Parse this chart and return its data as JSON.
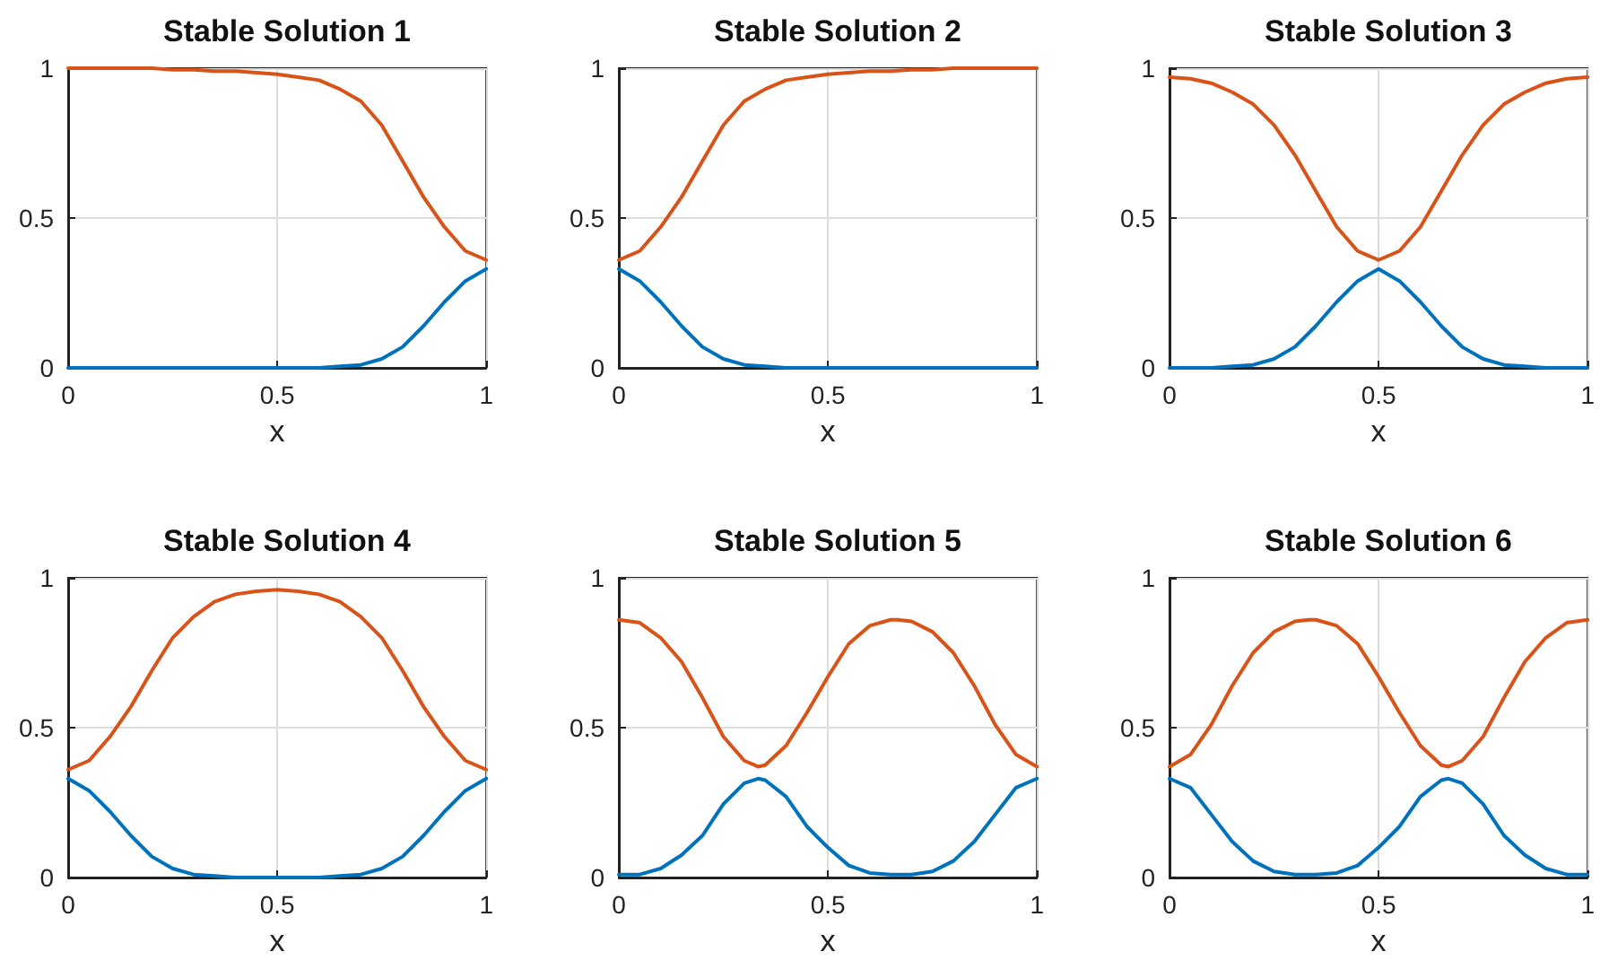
{
  "chart_data": [
    {
      "type": "line",
      "title": "Stable Solution 1",
      "xlabel": "x",
      "x": [
        0,
        0.05,
        0.1,
        0.15,
        0.2,
        0.25,
        0.3,
        0.35,
        0.4,
        0.45,
        0.5,
        0.55,
        0.6,
        0.65,
        0.7,
        0.75,
        0.8,
        0.85,
        0.9,
        0.95,
        1
      ],
      "xlim": [
        0,
        1
      ],
      "xticks": [
        0,
        0.5,
        1
      ],
      "ylim": [
        0,
        1
      ],
      "yticks": [
        0,
        0.5,
        1
      ],
      "grid": true,
      "series": [
        {
          "color": "#0072bd",
          "values": [
            0,
            0,
            0,
            0,
            0,
            0,
            0,
            0,
            0,
            0,
            0,
            0,
            0,
            0.005,
            0.01,
            0.03,
            0.07,
            0.14,
            0.22,
            0.29,
            0.33
          ]
        },
        {
          "color": "#d95319",
          "values": [
            1,
            1,
            1,
            1,
            1,
            0.995,
            0.995,
            0.99,
            0.99,
            0.985,
            0.98,
            0.97,
            0.96,
            0.93,
            0.89,
            0.81,
            0.69,
            0.57,
            0.47,
            0.39,
            0.36
          ]
        }
      ]
    },
    {
      "type": "line",
      "title": "Stable Solution 2",
      "xlabel": "x",
      "x": [
        0,
        0.05,
        0.1,
        0.15,
        0.2,
        0.25,
        0.3,
        0.35,
        0.4,
        0.45,
        0.5,
        0.55,
        0.6,
        0.65,
        0.7,
        0.75,
        0.8,
        0.85,
        0.9,
        0.95,
        1
      ],
      "xlim": [
        0,
        1
      ],
      "xticks": [
        0,
        0.5,
        1
      ],
      "ylim": [
        0,
        1
      ],
      "yticks": [
        0,
        0.5,
        1
      ],
      "grid": true,
      "series": [
        {
          "color": "#0072bd",
          "values": [
            0.33,
            0.29,
            0.22,
            0.14,
            0.07,
            0.03,
            0.01,
            0.005,
            0,
            0,
            0,
            0,
            0,
            0,
            0,
            0,
            0,
            0,
            0,
            0,
            0
          ]
        },
        {
          "color": "#d95319",
          "values": [
            0.36,
            0.39,
            0.47,
            0.57,
            0.69,
            0.81,
            0.89,
            0.93,
            0.96,
            0.97,
            0.98,
            0.985,
            0.99,
            0.99,
            0.995,
            0.995,
            1,
            1,
            1,
            1,
            1
          ]
        }
      ]
    },
    {
      "type": "line",
      "title": "Stable Solution 3",
      "xlabel": "x",
      "x": [
        0,
        0.05,
        0.1,
        0.15,
        0.2,
        0.25,
        0.3,
        0.35,
        0.4,
        0.45,
        0.5,
        0.55,
        0.6,
        0.65,
        0.7,
        0.75,
        0.8,
        0.85,
        0.9,
        0.95,
        1
      ],
      "xlim": [
        0,
        1
      ],
      "xticks": [
        0,
        0.5,
        1
      ],
      "ylim": [
        0,
        1
      ],
      "yticks": [
        0,
        0.5,
        1
      ],
      "grid": true,
      "series": [
        {
          "color": "#0072bd",
          "values": [
            0,
            0,
            0,
            0.005,
            0.01,
            0.03,
            0.07,
            0.14,
            0.22,
            0.29,
            0.33,
            0.29,
            0.22,
            0.14,
            0.07,
            0.03,
            0.01,
            0.005,
            0,
            0,
            0
          ]
        },
        {
          "color": "#d95319",
          "values": [
            0.97,
            0.965,
            0.95,
            0.92,
            0.88,
            0.81,
            0.71,
            0.59,
            0.47,
            0.39,
            0.36,
            0.39,
            0.47,
            0.59,
            0.71,
            0.81,
            0.88,
            0.92,
            0.95,
            0.965,
            0.97
          ]
        }
      ]
    },
    {
      "type": "line",
      "title": "Stable Solution 4",
      "xlabel": "x",
      "x": [
        0,
        0.05,
        0.1,
        0.15,
        0.2,
        0.25,
        0.3,
        0.35,
        0.4,
        0.45,
        0.5,
        0.55,
        0.6,
        0.65,
        0.7,
        0.75,
        0.8,
        0.85,
        0.9,
        0.95,
        1
      ],
      "xlim": [
        0,
        1
      ],
      "xticks": [
        0,
        0.5,
        1
      ],
      "ylim": [
        0,
        1
      ],
      "yticks": [
        0,
        0.5,
        1
      ],
      "grid": true,
      "series": [
        {
          "color": "#0072bd",
          "values": [
            0.33,
            0.29,
            0.22,
            0.14,
            0.07,
            0.03,
            0.01,
            0.005,
            0,
            0,
            0,
            0,
            0,
            0.005,
            0.01,
            0.03,
            0.07,
            0.14,
            0.22,
            0.29,
            0.33
          ]
        },
        {
          "color": "#d95319",
          "values": [
            0.36,
            0.39,
            0.47,
            0.57,
            0.69,
            0.8,
            0.87,
            0.92,
            0.945,
            0.955,
            0.96,
            0.955,
            0.945,
            0.92,
            0.87,
            0.8,
            0.69,
            0.57,
            0.47,
            0.39,
            0.36
          ]
        }
      ]
    },
    {
      "type": "line",
      "title": "Stable Solution 5",
      "xlabel": "x",
      "x": [
        0,
        0.05,
        0.1,
        0.15,
        0.2,
        0.25,
        0.3,
        0.333,
        0.35,
        0.4,
        0.45,
        0.5,
        0.55,
        0.6,
        0.65,
        0.667,
        0.7,
        0.75,
        0.8,
        0.85,
        0.9,
        0.95,
        1
      ],
      "xlim": [
        0,
        1
      ],
      "xticks": [
        0,
        0.5,
        1
      ],
      "ylim": [
        0,
        1
      ],
      "yticks": [
        0,
        0.5,
        1
      ],
      "grid": true,
      "series": [
        {
          "color": "#0072bd",
          "values": [
            0.01,
            0.01,
            0.03,
            0.075,
            0.14,
            0.245,
            0.315,
            0.33,
            0.325,
            0.27,
            0.17,
            0.1,
            0.04,
            0.015,
            0.01,
            0.01,
            0.01,
            0.02,
            0.055,
            0.12,
            0.21,
            0.3,
            0.33
          ]
        },
        {
          "color": "#d95319",
          "values": [
            0.86,
            0.85,
            0.8,
            0.72,
            0.6,
            0.47,
            0.39,
            0.37,
            0.375,
            0.44,
            0.55,
            0.67,
            0.78,
            0.84,
            0.86,
            0.86,
            0.855,
            0.82,
            0.75,
            0.64,
            0.51,
            0.41,
            0.37
          ]
        }
      ]
    },
    {
      "type": "line",
      "title": "Stable Solution 6",
      "xlabel": "x",
      "x": [
        0,
        0.05,
        0.1,
        0.15,
        0.2,
        0.25,
        0.3,
        0.333,
        0.35,
        0.4,
        0.45,
        0.5,
        0.55,
        0.6,
        0.65,
        0.667,
        0.7,
        0.75,
        0.8,
        0.85,
        0.9,
        0.95,
        1
      ],
      "xlim": [
        0,
        1
      ],
      "xticks": [
        0,
        0.5,
        1
      ],
      "ylim": [
        0,
        1
      ],
      "yticks": [
        0,
        0.5,
        1
      ],
      "grid": true,
      "series": [
        {
          "color": "#0072bd",
          "values": [
            0.33,
            0.3,
            0.21,
            0.12,
            0.055,
            0.02,
            0.01,
            0.01,
            0.01,
            0.015,
            0.04,
            0.1,
            0.17,
            0.27,
            0.325,
            0.33,
            0.315,
            0.245,
            0.14,
            0.075,
            0.03,
            0.01,
            0.01
          ]
        },
        {
          "color": "#d95319",
          "values": [
            0.37,
            0.41,
            0.51,
            0.64,
            0.75,
            0.82,
            0.855,
            0.86,
            0.86,
            0.84,
            0.78,
            0.67,
            0.55,
            0.44,
            0.375,
            0.37,
            0.39,
            0.47,
            0.6,
            0.72,
            0.8,
            0.85,
            0.86
          ]
        }
      ]
    }
  ]
}
